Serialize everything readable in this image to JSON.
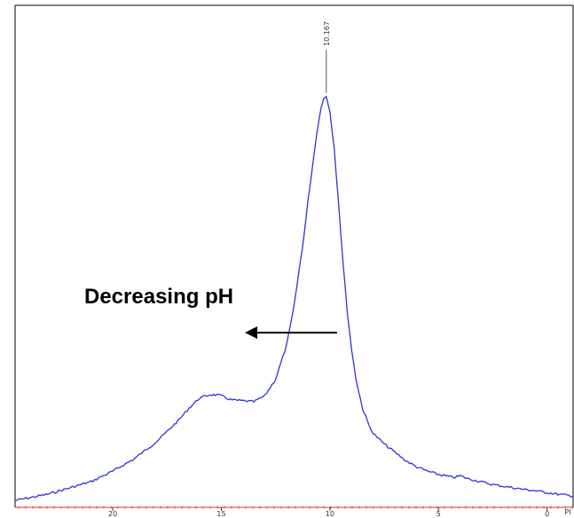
{
  "chart_data": {
    "type": "line",
    "title": "",
    "xlabel": "",
    "ylabel": "",
    "x_reversed": true,
    "xlim": [
      24.5,
      -1.2
    ],
    "ylim": [
      0,
      100
    ],
    "x_ticks": [
      20,
      15,
      10,
      5,
      0
    ],
    "x_tick_labels": [
      "20",
      "15",
      "10",
      "5",
      "0"
    ],
    "x_unit_label": "PI",
    "peak": {
      "x": 10.167,
      "label": "10.167"
    },
    "annotation": {
      "text": "Decreasing pH",
      "arrow_direction": "left"
    },
    "series": [
      {
        "color": "#3030e0",
        "x": [
          24.5,
          23,
          22,
          21,
          20,
          19,
          18,
          17,
          16.5,
          16,
          15.5,
          15.2,
          15,
          14.8,
          14.5,
          14,
          13.5,
          13,
          12.5,
          12,
          11.7,
          11.5,
          11.2,
          11,
          10.8,
          10.6,
          10.4,
          10.3,
          10.167,
          10,
          9.8,
          9.6,
          9.4,
          9.2,
          9,
          8.8,
          8.5,
          8.2,
          8,
          7.5,
          7,
          6.5,
          6,
          5.5,
          5,
          4.6,
          4.3,
          4,
          3.7,
          3.3,
          3,
          2.5,
          2,
          1.5,
          1,
          0.5,
          0,
          -0.5,
          -1,
          -1.2
        ],
        "values": [
          1,
          2.5,
          4,
          5.5,
          8,
          11,
          15,
          20,
          23,
          25.5,
          26.3,
          26.2,
          26,
          25.5,
          25,
          24.8,
          24.6,
          26,
          30,
          38,
          46,
          53,
          64,
          73,
          81,
          89,
          95,
          97,
          97.5,
          94,
          85,
          72,
          58,
          46,
          37,
          30,
          23,
          19,
          17,
          14.5,
          12.5,
          10.5,
          9,
          8,
          7.2,
          6.8,
          6.5,
          6.9,
          6.3,
          5.8,
          5.4,
          4.8,
          4.4,
          4,
          3.6,
          3.3,
          2.9,
          2.5,
          2.2,
          2
        ]
      }
    ]
  },
  "colors": {
    "trace": "#3030e0",
    "baseline": "#e03030",
    "frame": "#000000",
    "arrow": "#000000"
  }
}
